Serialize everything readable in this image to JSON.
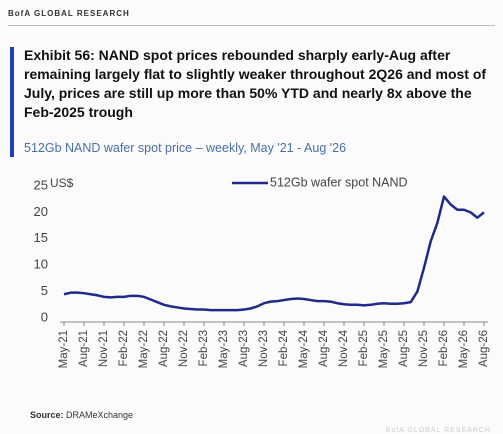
{
  "header": "BofA GLOBAL RESEARCH",
  "chart_data": {
    "type": "line",
    "title": "Exhibit 56: NAND spot prices rebounded sharply early-Aug after remaining largely flat to slightly weaker throughout 2Q26 and most of July, prices are still up more than 50% YTD and nearly 8x above the Feb-2025 trough",
    "subtitle": "512Gb NAND wafer spot price – weekly, May '21 - Aug '26",
    "y_label": "US$",
    "x": [
      "May-21",
      "Jun-21",
      "Jul-21",
      "Aug-21",
      "Sep-21",
      "Oct-21",
      "Nov-21",
      "Dec-21",
      "Jan-22",
      "Feb-22",
      "Mar-22",
      "Apr-22",
      "May-22",
      "Jun-22",
      "Jul-22",
      "Aug-22",
      "Sep-22",
      "Oct-22",
      "Nov-22",
      "Dec-22",
      "Jan-23",
      "Feb-23",
      "Mar-23",
      "Apr-23",
      "May-23",
      "Jun-23",
      "Jul-23",
      "Aug-23",
      "Sep-23",
      "Oct-23",
      "Nov-23",
      "Dec-23",
      "Jan-24",
      "Feb-24",
      "Mar-24",
      "Apr-24",
      "May-24",
      "Jun-24",
      "Jul-24",
      "Aug-24",
      "Sep-24",
      "Oct-24",
      "Nov-24",
      "Dec-24",
      "Jan-25",
      "Feb-25",
      "Mar-25",
      "Apr-25",
      "May-25",
      "Jun-25",
      "Jul-25",
      "Aug-25",
      "Sep-25",
      "Oct-25",
      "Nov-25",
      "Dec-25",
      "Jan-26",
      "Feb-26",
      "Mar-26",
      "Apr-26",
      "May-26",
      "Jun-26",
      "Jul-26",
      "Aug-26"
    ],
    "xticks": [
      "May-21",
      "Aug-21",
      "Nov-21",
      "Feb-22",
      "May-22",
      "Aug-22",
      "Nov-22",
      "Feb-23",
      "May-23",
      "Aug-23",
      "Nov-23",
      "Feb-24",
      "May-24",
      "Aug-24",
      "Nov-24",
      "Feb-25",
      "May-25",
      "Aug-25",
      "Nov-25",
      "Feb-26",
      "May-26",
      "Aug-26"
    ],
    "series": [
      {
        "name": "512Gb wafer spot NAND",
        "color": "#1f2a8a",
        "values": [
          4.5,
          4.8,
          4.8,
          4.7,
          4.5,
          4.3,
          4.0,
          3.9,
          4.0,
          4.0,
          4.2,
          4.2,
          4.0,
          3.5,
          3.0,
          2.5,
          2.2,
          2.0,
          1.8,
          1.7,
          1.6,
          1.6,
          1.5,
          1.5,
          1.5,
          1.5,
          1.5,
          1.6,
          1.8,
          2.2,
          2.8,
          3.1,
          3.2,
          3.4,
          3.6,
          3.7,
          3.6,
          3.4,
          3.2,
          3.2,
          3.1,
          2.8,
          2.6,
          2.5,
          2.5,
          2.4,
          2.5,
          2.7,
          2.8,
          2.7,
          2.7,
          2.8,
          3.0,
          5.0,
          9.5,
          14.5,
          18.0,
          23.0,
          21.5,
          20.5,
          20.5,
          20.0,
          19.0,
          20.0
        ]
      }
    ],
    "ylim": [
      0,
      25
    ],
    "yticks": [
      0,
      5,
      10,
      15,
      20,
      25
    ],
    "grid": false,
    "legend": "top"
  },
  "source": {
    "label": "Source:",
    "text": "DRAMeXchange"
  },
  "footer": "BofA GLOBAL RESEARCH"
}
